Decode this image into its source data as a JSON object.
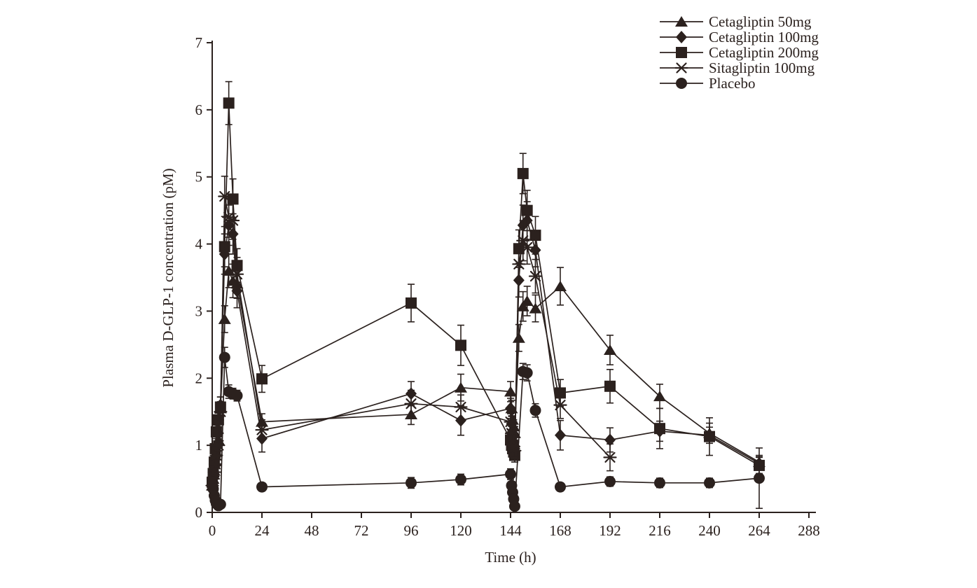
{
  "figure": {
    "background": "#ffffff",
    "ink_color": "#2b211e",
    "x_axis": {
      "label": "Time (h)",
      "min": 0,
      "max": 288,
      "tick_step": 24,
      "ticks": [
        0,
        24,
        48,
        72,
        96,
        120,
        144,
        168,
        192,
        216,
        240,
        264,
        288
      ]
    },
    "y_axis": {
      "label": "Plasma D-GLP-1 concentration (pM)",
      "min": 0,
      "max": 7,
      "tick_step": 1,
      "ticks": [
        0,
        1,
        2,
        3,
        4,
        5,
        6,
        7
      ]
    },
    "legend": {
      "position": "top-right",
      "items": [
        {
          "label": "Cetagliptin 50mg",
          "marker": "triangle"
        },
        {
          "label": "Cetagliptin 100mg",
          "marker": "diamond"
        },
        {
          "label": "Cetagliptin 200mg",
          "marker": "square"
        },
        {
          "label": "Sitagliptin 100mg",
          "marker": "star"
        },
        {
          "label": "Placebo",
          "marker": "circle"
        }
      ]
    }
  },
  "chart_data": {
    "type": "line",
    "title": "",
    "xlabel": "Time (h)",
    "ylabel": "Plasma D-GLP-1 concentration (pM)",
    "xlim": [
      0,
      288
    ],
    "ylim": [
      0,
      7
    ],
    "grid": false,
    "error_bars": true,
    "legend_position": "top-right",
    "x": [
      0,
      0.5,
      1,
      1.5,
      2,
      3,
      4,
      6,
      8,
      10,
      12,
      24,
      96,
      120,
      144,
      144.5,
      145,
      145.5,
      146,
      148,
      150,
      152,
      156,
      168,
      192,
      216,
      240,
      264
    ],
    "series": [
      {
        "name": "Cetagliptin 50mg",
        "marker": "triangle",
        "values": [
          0.4,
          0.5,
          0.62,
          0.76,
          0.9,
          1.08,
          1.55,
          2.88,
          3.6,
          3.45,
          3.41,
          1.35,
          1.46,
          1.86,
          1.8,
          1.55,
          1.38,
          1.28,
          1.18,
          2.6,
          3.07,
          3.15,
          3.04,
          3.37,
          2.42,
          1.73,
          1.18,
          0.75
        ],
        "errors": [
          0.05,
          0.05,
          0.06,
          0.06,
          0.07,
          0.08,
          0.1,
          0.2,
          0.25,
          0.25,
          0.22,
          0.12,
          0.15,
          0.2,
          0.15,
          0.12,
          0.1,
          0.1,
          0.1,
          0.2,
          0.22,
          0.22,
          0.2,
          0.28,
          0.22,
          0.18,
          0.15,
          0.1
        ]
      },
      {
        "name": "Cetagliptin 100mg",
        "marker": "diamond",
        "values": [
          0.42,
          0.54,
          0.68,
          0.82,
          0.98,
          1.18,
          1.6,
          3.85,
          4.28,
          4.15,
          3.3,
          1.1,
          1.77,
          1.37,
          1.55,
          1.32,
          1.18,
          1.05,
          0.95,
          3.46,
          4.28,
          4.35,
          3.91,
          1.15,
          1.08,
          1.21,
          1.15,
          0.73
        ],
        "errors": [
          0.05,
          0.05,
          0.06,
          0.06,
          0.07,
          0.08,
          0.12,
          0.3,
          0.3,
          0.3,
          0.25,
          0.2,
          0.18,
          0.22,
          0.15,
          0.12,
          0.1,
          0.1,
          0.1,
          0.25,
          0.3,
          0.28,
          0.25,
          0.22,
          0.18,
          0.15,
          0.12,
          0.1
        ]
      },
      {
        "name": "Cetagliptin 200mg",
        "marker": "square",
        "values": [
          0.45,
          0.58,
          0.75,
          0.95,
          1.2,
          1.38,
          1.57,
          3.96,
          6.1,
          4.67,
          3.68,
          1.99,
          3.12,
          2.49,
          1.08,
          1.0,
          0.95,
          0.9,
          0.85,
          3.93,
          5.05,
          4.5,
          4.13,
          1.78,
          1.88,
          1.25,
          1.13,
          0.7
        ],
        "errors": [
          0.05,
          0.05,
          0.06,
          0.08,
          0.1,
          0.1,
          0.15,
          0.3,
          0.32,
          0.3,
          0.25,
          0.2,
          0.28,
          0.3,
          0.12,
          0.1,
          0.1,
          0.1,
          0.1,
          0.28,
          0.3,
          0.3,
          0.28,
          0.2,
          0.25,
          0.3,
          0.28,
          0.12
        ]
      },
      {
        "name": "Sitagliptin 100mg",
        "marker": "star",
        "values": [
          0.4,
          0.5,
          0.6,
          0.72,
          0.85,
          1.0,
          1.5,
          4.71,
          4.4,
          4.35,
          3.55,
          1.23,
          1.62,
          1.57,
          1.35,
          1.18,
          1.05,
          0.98,
          0.92,
          3.7,
          4.05,
          3.95,
          3.52,
          1.6,
          0.82,
          null,
          null,
          null
        ],
        "errors": [
          0.05,
          0.05,
          0.05,
          0.06,
          0.07,
          0.08,
          0.12,
          0.3,
          0.3,
          0.28,
          0.25,
          0.15,
          0.2,
          0.18,
          0.12,
          0.1,
          0.1,
          0.1,
          0.1,
          0.25,
          0.3,
          0.25,
          0.25,
          0.2,
          0.2,
          null,
          null,
          null
        ]
      },
      {
        "name": "Placebo",
        "marker": "circle",
        "values": [
          0.45,
          0.35,
          0.25,
          0.18,
          0.13,
          0.1,
          0.12,
          2.31,
          1.8,
          1.77,
          1.74,
          0.38,
          0.44,
          0.49,
          0.57,
          0.4,
          0.3,
          0.2,
          0.09,
          null,
          2.1,
          2.08,
          1.52,
          0.38,
          0.46,
          0.44,
          0.44,
          0.51
        ],
        "errors": [
          0.05,
          0.04,
          0.04,
          0.04,
          0.04,
          0.04,
          0.04,
          0.15,
          0.1,
          0.08,
          0.08,
          0.06,
          0.08,
          0.08,
          0.08,
          0.06,
          0.05,
          0.05,
          0.04,
          null,
          0.12,
          0.12,
          0.1,
          0.06,
          0.07,
          0.07,
          0.07,
          0.45
        ]
      }
    ]
  }
}
